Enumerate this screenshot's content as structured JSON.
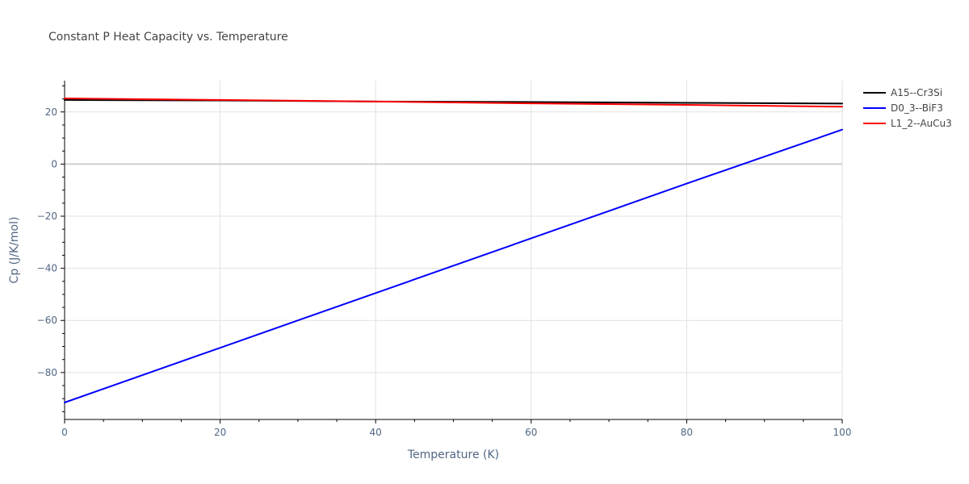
{
  "chart_data": {
    "type": "line",
    "title": "Constant P Heat Capacity vs. Temperature",
    "xlabel": "Temperature (K)",
    "ylabel": "Cp (J/K/mol)",
    "xlim": [
      0,
      100
    ],
    "ylim": [
      -98,
      32
    ],
    "x_ticks": [
      0,
      20,
      40,
      60,
      80,
      100
    ],
    "y_ticks": [
      -80,
      -60,
      -40,
      -20,
      0,
      20
    ],
    "y_tick_labels": [
      "−80",
      "−60",
      "−40",
      "−20",
      "0",
      "20"
    ],
    "grid": true,
    "legend_position": "top-right",
    "series": [
      {
        "name": "A15--Cr3Si",
        "color": "#000000",
        "x": [
          0,
          20,
          40,
          60,
          80,
          100
        ],
        "y": [
          24.6,
          24.4,
          24.0,
          23.8,
          23.5,
          23.2
        ]
      },
      {
        "name": "D0_3--BiF3",
        "color": "#0000ff",
        "x": [
          0,
          20,
          40,
          60,
          80,
          100
        ],
        "y": [
          -91.5,
          -70.5,
          -49.5,
          -28.5,
          -7.5,
          13.2
        ]
      },
      {
        "name": "L1_2--AuCu3",
        "color": "#ff0000",
        "x": [
          0,
          20,
          40,
          60,
          80,
          100
        ],
        "y": [
          25.2,
          24.6,
          24.0,
          23.3,
          22.7,
          22.0
        ]
      }
    ]
  }
}
